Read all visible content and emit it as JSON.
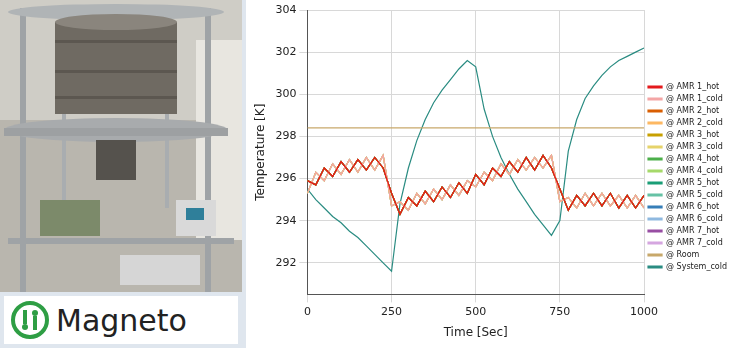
{
  "chart_data": {
    "type": "line",
    "x_label": "Time [Sec]",
    "y_label": "Temperature [K]",
    "x": [
      0,
      25,
      50,
      75,
      100,
      125,
      150,
      175,
      200,
      225,
      250,
      275,
      300,
      325,
      350,
      375,
      400,
      425,
      450,
      475,
      500,
      525,
      550,
      575,
      600,
      625,
      650,
      675,
      700,
      725,
      750,
      775,
      800,
      825,
      850,
      875,
      900,
      925,
      950,
      975,
      1000
    ],
    "xlim": [
      0,
      1000
    ],
    "xticks": [
      0,
      250,
      500,
      750,
      1000
    ],
    "ylim": [
      290.5,
      304
    ],
    "yticks": [
      292,
      294,
      296,
      298,
      300,
      302,
      304
    ],
    "grid": true,
    "legend": "right",
    "series": [
      {
        "name": "@ AMR 1_hot",
        "color": "#e41a1c",
        "values": [
          295.9,
          295.7,
          296.5,
          296.1,
          296.8,
          296.3,
          296.9,
          296.4,
          297.0,
          296.5,
          295.3,
          294.3,
          295.1,
          294.7,
          295.4,
          294.9,
          295.6,
          295.1,
          295.8,
          295.3,
          296.2,
          295.7,
          296.5,
          296.1,
          296.8,
          296.3,
          297.0,
          296.4,
          297.1,
          296.5,
          295.5,
          294.5,
          295.2,
          294.7,
          295.3,
          294.7,
          295.3,
          294.6,
          295.2,
          294.6,
          295.2
        ]
      },
      {
        "name": "@ AMR 1_cold",
        "color": "#f4a6a6",
        "values": [
          295.3,
          296.3,
          295.9,
          296.7,
          296.2,
          296.9,
          296.3,
          297.0,
          296.4,
          297.1,
          294.7,
          294.9,
          294.5,
          295.3,
          294.8,
          295.5,
          295.0,
          295.7,
          295.2,
          295.9,
          295.6,
          296.3,
          295.9,
          296.7,
          296.2,
          296.9,
          296.4,
          297.0,
          296.5,
          297.1,
          294.9,
          295.1,
          294.6,
          295.3,
          294.7,
          295.3,
          294.7,
          295.2,
          294.6,
          295.2,
          294.6
        ]
      },
      {
        "name": "@ AMR 2_hot",
        "color": "#d95f02",
        "values": [
          295.9,
          295.7,
          296.5,
          296.1,
          296.8,
          296.3,
          296.9,
          296.4,
          297.0,
          296.5,
          295.3,
          294.3,
          295.1,
          294.7,
          295.4,
          294.9,
          295.6,
          295.1,
          295.8,
          295.3,
          296.2,
          295.7,
          296.5,
          296.1,
          296.8,
          296.3,
          297.0,
          296.4,
          297.1,
          296.5,
          295.5,
          294.5,
          295.2,
          294.7,
          295.3,
          294.7,
          295.3,
          294.6,
          295.2,
          294.6,
          295.2
        ]
      },
      {
        "name": "@ AMR 2_cold",
        "color": "#fdb863",
        "values": [
          295.3,
          296.3,
          295.9,
          296.7,
          296.2,
          296.9,
          296.3,
          297.0,
          296.4,
          297.1,
          294.7,
          294.9,
          294.5,
          295.3,
          294.8,
          295.5,
          295.0,
          295.7,
          295.2,
          295.9,
          295.6,
          296.3,
          295.9,
          296.7,
          296.2,
          296.9,
          296.4,
          297.0,
          296.5,
          297.1,
          294.9,
          295.1,
          294.6,
          295.3,
          294.7,
          295.3,
          294.7,
          295.2,
          294.6,
          295.2,
          294.6
        ]
      },
      {
        "name": "@ AMR 3_hot",
        "color": "#c8a000",
        "values": [
          295.9,
          295.7,
          296.5,
          296.1,
          296.8,
          296.3,
          296.9,
          296.4,
          297.0,
          296.5,
          295.3,
          294.3,
          295.1,
          294.7,
          295.4,
          294.9,
          295.6,
          295.1,
          295.8,
          295.3,
          296.2,
          295.7,
          296.5,
          296.1,
          296.8,
          296.3,
          297.0,
          296.4,
          297.1,
          296.5,
          295.5,
          294.5,
          295.2,
          294.7,
          295.3,
          294.7,
          295.3,
          294.6,
          295.2,
          294.6,
          295.2
        ]
      },
      {
        "name": "@ AMR 3_cold",
        "color": "#e6d36b",
        "values": [
          295.3,
          296.3,
          295.9,
          296.7,
          296.2,
          296.9,
          296.3,
          297.0,
          296.4,
          297.1,
          294.7,
          294.9,
          294.5,
          295.3,
          294.8,
          295.5,
          295.0,
          295.7,
          295.2,
          295.9,
          295.6,
          296.3,
          295.9,
          296.7,
          296.2,
          296.9,
          296.4,
          297.0,
          296.5,
          297.1,
          294.9,
          295.1,
          294.6,
          295.3,
          294.7,
          295.3,
          294.7,
          295.2,
          294.6,
          295.2,
          294.6
        ]
      },
      {
        "name": "@ AMR 4_hot",
        "color": "#4daf4a",
        "values": [
          295.9,
          295.7,
          296.5,
          296.1,
          296.8,
          296.3,
          296.9,
          296.4,
          297.0,
          296.5,
          295.3,
          294.3,
          295.1,
          294.7,
          295.4,
          294.9,
          295.6,
          295.1,
          295.8,
          295.3,
          296.2,
          295.7,
          296.5,
          296.1,
          296.8,
          296.3,
          297.0,
          296.4,
          297.1,
          296.5,
          295.5,
          294.5,
          295.2,
          294.7,
          295.3,
          294.7,
          295.3,
          294.6,
          295.2,
          294.6,
          295.2
        ]
      },
      {
        "name": "@ AMR 4_cold",
        "color": "#a6d96a",
        "values": [
          295.3,
          296.3,
          295.9,
          296.7,
          296.2,
          296.9,
          296.3,
          297.0,
          296.4,
          297.1,
          294.7,
          294.9,
          294.5,
          295.3,
          294.8,
          295.5,
          295.0,
          295.7,
          295.2,
          295.9,
          295.6,
          296.3,
          295.9,
          296.7,
          296.2,
          296.9,
          296.4,
          297.0,
          296.5,
          297.1,
          294.9,
          295.1,
          294.6,
          295.3,
          294.7,
          295.3,
          294.7,
          295.2,
          294.6,
          295.2,
          294.6
        ]
      },
      {
        "name": "@ AMR 5_hot",
        "color": "#1b9e77",
        "values": [
          295.9,
          295.7,
          296.5,
          296.1,
          296.8,
          296.3,
          296.9,
          296.4,
          297.0,
          296.5,
          295.3,
          294.3,
          295.1,
          294.7,
          295.4,
          294.9,
          295.6,
          295.1,
          295.8,
          295.3,
          296.2,
          295.7,
          296.5,
          296.1,
          296.8,
          296.3,
          297.0,
          296.4,
          297.1,
          296.5,
          295.5,
          294.5,
          295.2,
          294.7,
          295.3,
          294.7,
          295.3,
          294.6,
          295.2,
          294.6,
          295.2
        ]
      },
      {
        "name": "@ AMR 5_cold",
        "color": "#66c2a5",
        "values": [
          295.3,
          296.3,
          295.9,
          296.7,
          296.2,
          296.9,
          296.3,
          297.0,
          296.4,
          297.1,
          294.7,
          294.9,
          294.5,
          295.3,
          294.8,
          295.5,
          295.0,
          295.7,
          295.2,
          295.9,
          295.6,
          296.3,
          295.9,
          296.7,
          296.2,
          296.9,
          296.4,
          297.0,
          296.5,
          297.1,
          294.9,
          295.1,
          294.6,
          295.3,
          294.7,
          295.3,
          294.7,
          295.2,
          294.6,
          295.2,
          294.6
        ]
      },
      {
        "name": "@ AMR 6_hot",
        "color": "#377eb8",
        "values": [
          295.9,
          295.7,
          296.5,
          296.1,
          296.8,
          296.3,
          296.9,
          296.4,
          297.0,
          296.5,
          295.3,
          294.3,
          295.1,
          294.7,
          295.4,
          294.9,
          295.6,
          295.1,
          295.8,
          295.3,
          296.2,
          295.7,
          296.5,
          296.1,
          296.8,
          296.3,
          297.0,
          296.4,
          297.1,
          296.5,
          295.5,
          294.5,
          295.2,
          294.7,
          295.3,
          294.7,
          295.3,
          294.6,
          295.2,
          294.6,
          295.2
        ]
      },
      {
        "name": "@ AMR 6_cold",
        "color": "#8fb9e0",
        "values": [
          295.3,
          296.3,
          295.9,
          296.7,
          296.2,
          296.9,
          296.3,
          297.0,
          296.4,
          297.1,
          294.7,
          294.9,
          294.5,
          295.3,
          294.8,
          295.5,
          295.0,
          295.7,
          295.2,
          295.9,
          295.6,
          296.3,
          295.9,
          296.7,
          296.2,
          296.9,
          296.4,
          297.0,
          296.5,
          297.1,
          294.9,
          295.1,
          294.6,
          295.3,
          294.7,
          295.3,
          294.7,
          295.2,
          294.6,
          295.2,
          294.6
        ]
      },
      {
        "name": "@ AMR 7_hot",
        "color": "#984ea3",
        "values": [
          295.9,
          295.7,
          296.5,
          296.1,
          296.8,
          296.3,
          296.9,
          296.4,
          297.0,
          296.5,
          295.3,
          294.3,
          295.1,
          294.7,
          295.4,
          294.9,
          295.6,
          295.1,
          295.8,
          295.3,
          296.2,
          295.7,
          296.5,
          296.1,
          296.8,
          296.3,
          297.0,
          296.4,
          297.1,
          296.5,
          295.5,
          294.5,
          295.2,
          294.7,
          295.3,
          294.7,
          295.3,
          294.6,
          295.2,
          294.6,
          295.2
        ]
      },
      {
        "name": "@ AMR 7_cold",
        "color": "#d5a6e0",
        "values": [
          295.3,
          296.3,
          295.9,
          296.7,
          296.2,
          296.9,
          296.3,
          297.0,
          296.4,
          297.1,
          294.7,
          294.9,
          294.5,
          295.3,
          294.8,
          295.5,
          295.0,
          295.7,
          295.2,
          295.9,
          295.6,
          296.3,
          295.9,
          296.7,
          296.2,
          296.9,
          296.4,
          297.0,
          296.5,
          297.1,
          294.9,
          295.1,
          294.6,
          295.3,
          294.7,
          295.3,
          294.7,
          295.2,
          294.6,
          295.2,
          294.6
        ]
      },
      {
        "name": "@ Room",
        "color": "#c8a86b",
        "values": [
          298.4,
          298.4,
          298.4,
          298.4,
          298.4,
          298.4,
          298.4,
          298.4,
          298.4,
          298.4,
          298.4,
          298.4,
          298.4,
          298.4,
          298.4,
          298.4,
          298.4,
          298.4,
          298.4,
          298.4,
          298.4,
          298.4,
          298.4,
          298.4,
          298.4,
          298.4,
          298.4,
          298.4,
          298.4,
          298.4,
          298.4,
          298.4,
          298.4,
          298.4,
          298.4,
          298.4,
          298.4,
          298.4,
          298.4,
          298.4,
          298.4
        ]
      },
      {
        "name": "@ System_cold",
        "color": "#2a8c82",
        "values": [
          295.5,
          295.0,
          294.6,
          294.2,
          293.9,
          293.5,
          293.2,
          292.8,
          292.4,
          292.0,
          291.6,
          294.8,
          296.5,
          297.8,
          298.8,
          299.6,
          300.2,
          300.7,
          301.2,
          301.6,
          301.3,
          299.3,
          298.0,
          297.0,
          296.2,
          295.5,
          294.9,
          294.3,
          293.8,
          293.3,
          294.0,
          297.3,
          298.8,
          299.8,
          300.4,
          300.9,
          301.3,
          301.6,
          301.8,
          302.0,
          302.2
        ]
      }
    ]
  },
  "logo": {
    "text": "Magneto"
  }
}
